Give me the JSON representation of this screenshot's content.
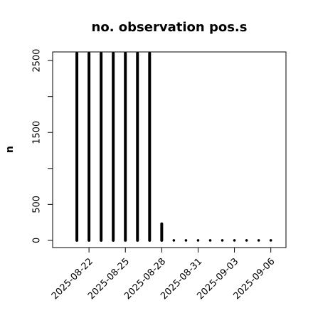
{
  "chart_data": {
    "type": "bar",
    "title": "no. observation pos.s",
    "xlabel": "",
    "ylabel": "n",
    "ylim": [
      -100,
      2620
    ],
    "yticks": [
      0,
      500,
      1500,
      2500
    ],
    "yticks_unlabeled": [
      1000,
      2000
    ],
    "xlim": [
      "2025-08-19T00:00",
      "2025-09-07T06:00"
    ],
    "xticks": [
      {
        "label": "2025-08-22",
        "date": "2025-08-22",
        "color": "#000000"
      },
      {
        "label": "2025-08-25",
        "date": "2025-08-25",
        "color": "#000000"
      },
      {
        "label": "2025-08-28",
        "date": "2025-08-28",
        "color": "#228B22"
      },
      {
        "label": "2025-08-31",
        "date": "2025-08-31",
        "color": "#000000"
      },
      {
        "label": "2025-09-03",
        "date": "2025-09-03",
        "color": "#000000"
      },
      {
        "label": "2025-09-06",
        "date": "2025-09-06",
        "color": "#000000"
      }
    ],
    "x": [
      "2025-08-21",
      "2025-08-22",
      "2025-08-23",
      "2025-08-24",
      "2025-08-25",
      "2025-08-26",
      "2025-08-27",
      "2025-08-28",
      "2025-08-29",
      "2025-08-30",
      "2025-08-31",
      "2025-09-01",
      "2025-09-02",
      "2025-09-03",
      "2025-09-04",
      "2025-09-05",
      "2025-09-06"
    ],
    "values": [
      2600,
      2600,
      2600,
      2600,
      2600,
      2600,
      2600,
      230,
      0,
      0,
      0,
      0,
      0,
      0,
      0,
      0,
      0
    ],
    "bar_color": "#000000",
    "grid": false
  }
}
